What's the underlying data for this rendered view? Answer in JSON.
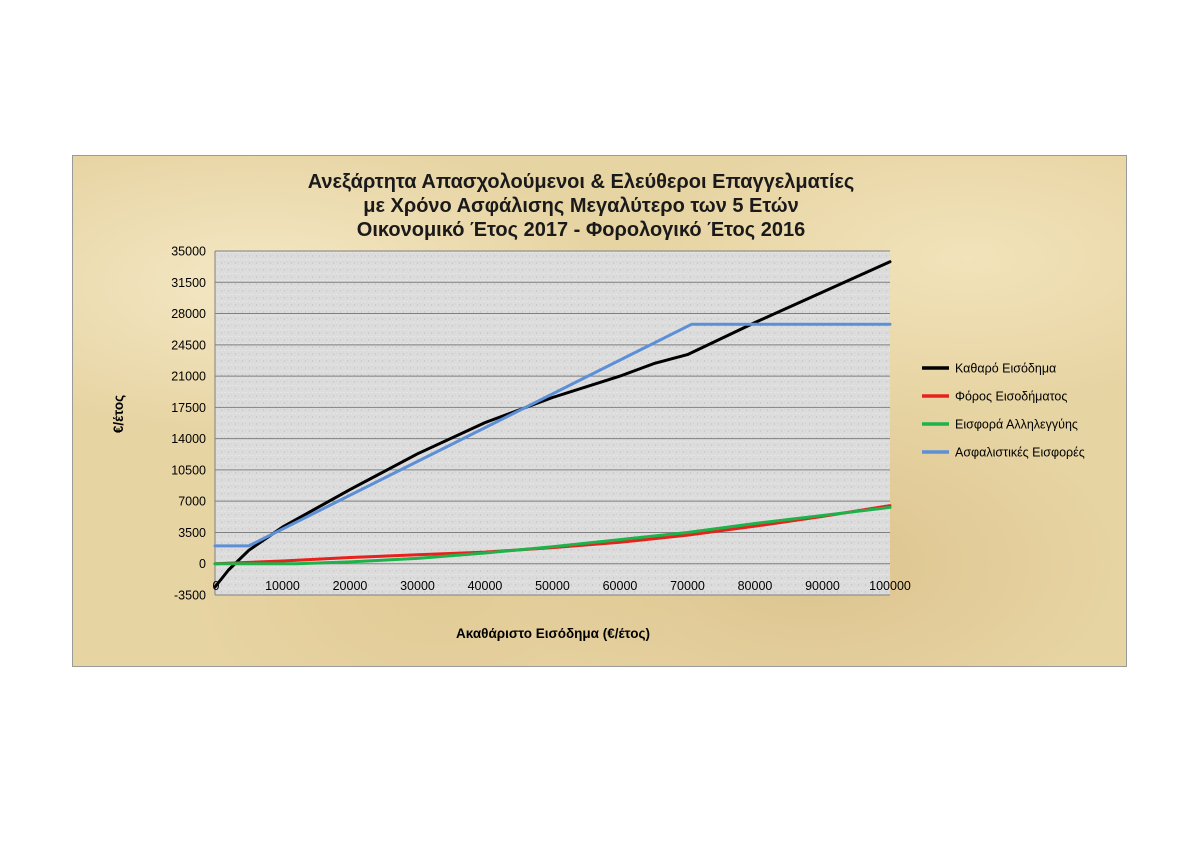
{
  "chart_data": {
    "type": "line",
    "title": [
      "Ανεξάρτητα Απασχολούμενοι & Ελεύθεροι Επαγγελματίες",
      "με Χρόνο Ασφάλισης Μεγαλύτερο των 5 Ετών",
      "Οικονομικό Έτος 2017 - Φορολογικό Έτος 2016"
    ],
    "xlabel": "Ακαθάριστο Εισόδημα (€/έτος)",
    "ylabel": "€/έτος",
    "xlim": [
      0,
      100000
    ],
    "ylim": [
      -3500,
      35000
    ],
    "x_ticks": [
      "0",
      "10000",
      "20000",
      "30000",
      "40000",
      "50000",
      "60000",
      "70000",
      "80000",
      "90000",
      "100000"
    ],
    "y_ticks": [
      "35000",
      "31500",
      "28000",
      "24500",
      "21000",
      "17500",
      "14000",
      "10500",
      "7000",
      "3500",
      "0",
      "-3500"
    ],
    "grid": "horizontal",
    "legend_position": "right",
    "series": [
      {
        "name": "Καθαρό Εισόδημα",
        "color": "#000000",
        "points": [
          [
            0,
            -2600
          ],
          [
            2000,
            -700
          ],
          [
            5000,
            1500
          ],
          [
            10000,
            4100
          ],
          [
            20000,
            8300
          ],
          [
            30000,
            12300
          ],
          [
            40000,
            15800
          ],
          [
            50000,
            18600
          ],
          [
            60000,
            21000
          ],
          [
            65000,
            22400
          ],
          [
            70000,
            23400
          ],
          [
            80000,
            27000
          ],
          [
            90000,
            30400
          ],
          [
            100000,
            33800
          ]
        ]
      },
      {
        "name": "Φόρος Εισοδήματος",
        "color": "#e8211d",
        "points": [
          [
            0,
            0
          ],
          [
            10000,
            300
          ],
          [
            20000,
            700
          ],
          [
            30000,
            1000
          ],
          [
            40000,
            1300
          ],
          [
            50000,
            1800
          ],
          [
            60000,
            2400
          ],
          [
            70000,
            3200
          ],
          [
            80000,
            4200
          ],
          [
            90000,
            5300
          ],
          [
            100000,
            6500
          ]
        ]
      },
      {
        "name": "Εισφορά Αλληλεγγύης",
        "color": "#1eb24b",
        "points": [
          [
            0,
            0
          ],
          [
            12000,
            0
          ],
          [
            20000,
            200
          ],
          [
            30000,
            600
          ],
          [
            40000,
            1200
          ],
          [
            50000,
            1900
          ],
          [
            60000,
            2700
          ],
          [
            70000,
            3500
          ],
          [
            80000,
            4500
          ],
          [
            90000,
            5400
          ],
          [
            100000,
            6300
          ]
        ]
      },
      {
        "name": "Ασφαλιστικές Εισφορές",
        "color": "#5b8fd6",
        "points": [
          [
            0,
            2000
          ],
          [
            5000,
            2000
          ],
          [
            70600,
            26800
          ],
          [
            100000,
            26800
          ]
        ]
      }
    ]
  }
}
